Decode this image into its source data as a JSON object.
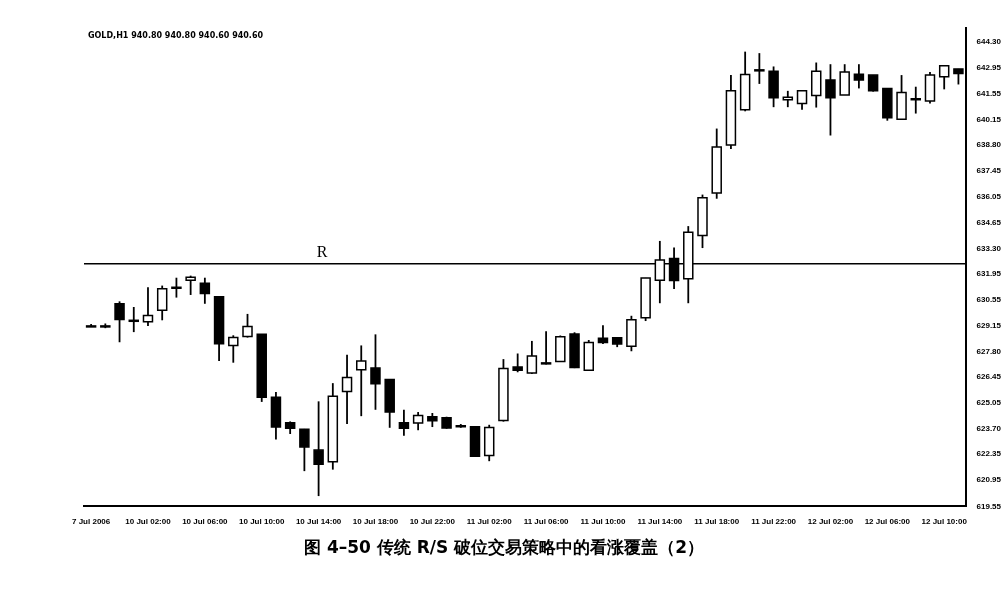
{
  "chart_data": {
    "type": "candlestick",
    "title": "图 4–50   传统 R/S 破位交易策略中的看涨覆盖（2）",
    "annotations": [
      "GOLD,H1 940.80 940.80 940.60 940.60"
    ],
    "color": "#000000",
    "grid": false,
    "legend": false,
    "categories": [
      "7 Jul 2006",
      null,
      null,
      null,
      "10 Jul 02:00",
      null,
      null,
      null,
      "10 Jul 06:00",
      null,
      null,
      null,
      "10 Jul 10:00",
      null,
      null,
      null,
      "10 Jul 14:00",
      null,
      null,
      null,
      "10 Jul 18:00",
      null,
      null,
      null,
      "10 Jul 22:00",
      null,
      null,
      null,
      "11 Jul 02:00",
      null,
      null,
      null,
      "11 Jul 06:00",
      null,
      null,
      null,
      "11 Jul 10:00",
      null,
      null,
      null,
      "11 Jul 14:00",
      null,
      null,
      null,
      "11 Jul 18:00",
      null,
      null,
      null,
      "11 Jul 22:00",
      null,
      null,
      null,
      "12 Jul 02:00",
      null,
      null,
      null,
      "12 Jul 06:00",
      null,
      null,
      null,
      "12 Jul 10:00",
      null
    ],
    "ohlc": [
      [
        629.15,
        629.27,
        629.11,
        629.17
      ],
      [
        629.15,
        629.3,
        629.05,
        629.17
      ],
      [
        630.35,
        630.48,
        628.3,
        629.51
      ],
      [
        629.45,
        630.18,
        628.84,
        629.47
      ],
      [
        629.39,
        631.23,
        629.17,
        629.73
      ],
      [
        630.01,
        631.32,
        629.47,
        631.15
      ],
      [
        631.2,
        631.74,
        630.68,
        631.23
      ],
      [
        631.6,
        631.85,
        630.82,
        631.77
      ],
      [
        631.45,
        631.74,
        630.35,
        630.9
      ],
      [
        630.73,
        630.75,
        627.3,
        628.22
      ],
      [
        628.13,
        628.67,
        627.21,
        628.55
      ],
      [
        628.6,
        629.81,
        628.55,
        629.14
      ],
      [
        628.72,
        628.74,
        625.12,
        625.37
      ],
      [
        625.37,
        625.65,
        623.11,
        623.78
      ],
      [
        624.01,
        624.08,
        623.41,
        623.71
      ],
      [
        623.66,
        623.68,
        621.43,
        622.72
      ],
      [
        622.55,
        625.15,
        620.1,
        621.8
      ],
      [
        621.93,
        626.12,
        621.51,
        625.42
      ],
      [
        625.67,
        627.63,
        623.94,
        626.42
      ],
      [
        626.83,
        628.13,
        624.36,
        627.3
      ],
      [
        626.93,
        628.72,
        624.7,
        626.09
      ],
      [
        626.32,
        626.34,
        623.74,
        624.58
      ],
      [
        624.01,
        624.7,
        623.31,
        623.71
      ],
      [
        623.99,
        624.58,
        623.61,
        624.4
      ],
      [
        624.33,
        624.53,
        623.78,
        624.11
      ],
      [
        624.28,
        624.33,
        623.69,
        623.73
      ],
      [
        623.85,
        623.94,
        623.74,
        623.83
      ],
      [
        623.8,
        623.82,
        622.2,
        622.22
      ],
      [
        622.26,
        623.9,
        621.96,
        623.76
      ],
      [
        624.13,
        627.4,
        624.07,
        626.9
      ],
      [
        626.98,
        627.7,
        626.7,
        626.81
      ],
      [
        626.66,
        628.37,
        626.61,
        627.57
      ],
      [
        627.18,
        628.88,
        627.12,
        627.2
      ],
      [
        627.28,
        628.66,
        627.25,
        628.59
      ],
      [
        628.74,
        628.83,
        626.92,
        626.95
      ],
      [
        626.81,
        628.42,
        626.78,
        628.29
      ],
      [
        628.51,
        629.21,
        628.21,
        628.29
      ],
      [
        628.54,
        628.54,
        628.04,
        628.21
      ],
      [
        628.09,
        629.71,
        627.82,
        629.5
      ],
      [
        629.6,
        631.73,
        629.43,
        631.73
      ],
      [
        631.61,
        633.7,
        630.38,
        632.68
      ],
      [
        632.77,
        633.35,
        631.14,
        631.59
      ],
      [
        631.69,
        634.49,
        630.38,
        634.16
      ],
      [
        633.99,
        636.17,
        633.32,
        636.0
      ],
      [
        636.25,
        639.69,
        635.95,
        638.71
      ],
      [
        638.81,
        642.54,
        638.6,
        641.7
      ],
      [
        640.69,
        643.79,
        640.61,
        642.57
      ],
      [
        642.8,
        643.71,
        642.07,
        642.82
      ],
      [
        642.75,
        643.0,
        640.83,
        641.33
      ],
      [
        641.23,
        641.7,
        640.83,
        641.36
      ],
      [
        641.03,
        641.73,
        640.69,
        641.7
      ],
      [
        641.45,
        643.21,
        640.81,
        642.74
      ],
      [
        642.28,
        643.12,
        639.32,
        641.33
      ],
      [
        641.48,
        643.12,
        641.48,
        642.7
      ],
      [
        642.59,
        643.12,
        641.83,
        642.28
      ],
      [
        642.54,
        642.54,
        641.66,
        641.7
      ],
      [
        641.82,
        641.82,
        640.11,
        640.27
      ],
      [
        640.19,
        642.54,
        640.16,
        641.61
      ],
      [
        641.26,
        641.92,
        640.49,
        641.28
      ],
      [
        641.16,
        642.7,
        641.03,
        642.54
      ],
      [
        642.45,
        643.04,
        641.78,
        643.04
      ],
      [
        642.87,
        642.87,
        642.04,
        642.62
      ]
    ],
    "ylim": [
      619.55,
      645.05
    ],
    "yticks": [
      {
        "value": 644.3,
        "label": "644.30"
      },
      {
        "value": 642.95,
        "label": "642.95"
      },
      {
        "value": 641.55,
        "label": "641.55"
      },
      {
        "value": 640.15,
        "label": "640.15"
      },
      {
        "value": 638.8,
        "label": "638.80"
      },
      {
        "value": 637.45,
        "label": "637.45"
      },
      {
        "value": 636.05,
        "label": "636.05"
      },
      {
        "value": 634.65,
        "label": "634.65"
      },
      {
        "value": 633.3,
        "label": "633.30"
      },
      {
        "value": 631.95,
        "label": "631.95"
      },
      {
        "value": 630.55,
        "label": "630.55"
      },
      {
        "value": 629.15,
        "label": "629.15"
      },
      {
        "value": 627.8,
        "label": "627.80"
      },
      {
        "value": 626.45,
        "label": "626.45"
      },
      {
        "value": 625.05,
        "label": "625.05"
      },
      {
        "value": 623.7,
        "label": "623.70"
      },
      {
        "value": 622.35,
        "label": "622.35"
      },
      {
        "value": 620.95,
        "label": "620.95"
      },
      {
        "value": 619.55,
        "label": "619.55"
      }
    ],
    "ref_lines": [
      {
        "axis": "y",
        "value": 632.49,
        "label": "R",
        "color": "#000000"
      }
    ]
  }
}
